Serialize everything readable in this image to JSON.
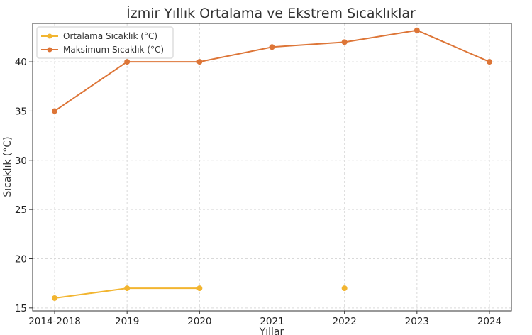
{
  "chart_data": {
    "type": "line",
    "title": "İzmir Yıllık Ortalama ve Ekstrem Sıcaklıklar",
    "xlabel": "Yıllar",
    "ylabel": "Sıcaklık (°C)",
    "categories": [
      "2014-2018",
      "2019",
      "2020",
      "2021",
      "2022",
      "2023",
      "2024"
    ],
    "yticks": [
      15,
      20,
      25,
      30,
      35,
      40
    ],
    "ylim": [
      14.7,
      43.9
    ],
    "grid": true,
    "legend_position": "top-left",
    "series": [
      {
        "name": "Ortalama Sıcaklık (°C)",
        "color": "#f2b530",
        "values": [
          16,
          17,
          17,
          null,
          17,
          null,
          null
        ]
      },
      {
        "name": "Maksimum Sıcaklık (°C)",
        "color": "#dd7537",
        "values": [
          35,
          40,
          40,
          41.5,
          42,
          43.2,
          40
        ]
      }
    ]
  }
}
